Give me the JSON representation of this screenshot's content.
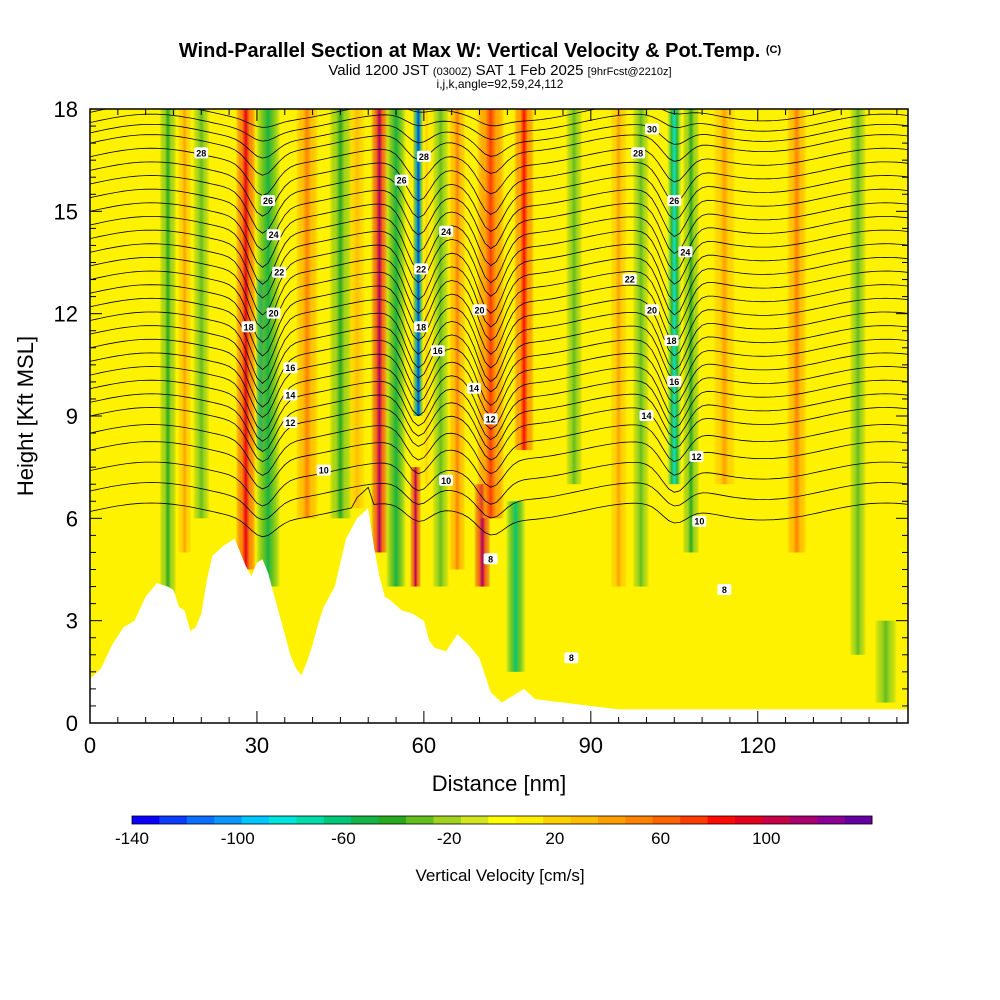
{
  "chart_data": {
    "type": "heatmap",
    "title": "Wind-Parallel Section at Max W: Vertical Velocity & Pot.Temp.",
    "title_mark": "(C)",
    "subtitle_parts": [
      "Valid 1200 JST",
      "(0300Z)",
      "SAT 1 Feb 2025",
      "[9hrFcst@2210z]"
    ],
    "subtitle2": "i,j,k,angle=92,59,24,112",
    "xlabel": "Distance [nm]",
    "ylabel": "Height [Kft MSL]",
    "xlim": [
      0,
      147
    ],
    "ylim": [
      0,
      18
    ],
    "x_ticks": [
      "0",
      "30",
      "60",
      "90",
      "120"
    ],
    "x_tick_values": [
      0,
      30,
      60,
      90,
      120
    ],
    "y_ticks": [
      "0",
      "3",
      "6",
      "9",
      "12",
      "15",
      "18"
    ],
    "y_tick_values": [
      0,
      3,
      6,
      9,
      12,
      15,
      18
    ],
    "colorbar": {
      "label": "Vertical Velocity [cm/s]",
      "min": -140,
      "max": 140,
      "tick_labels": [
        "-140",
        "-100",
        "-60",
        "-20",
        "20",
        "60",
        "100"
      ],
      "tick_values": [
        -140,
        -100,
        -60,
        -20,
        20,
        60,
        100
      ],
      "colors": [
        "#0a00ff",
        "#0a3cff",
        "#0a6eff",
        "#0a96ff",
        "#00c8ff",
        "#00e6dc",
        "#00dcaa",
        "#00c878",
        "#14b446",
        "#28aa1e",
        "#64be1e",
        "#a0d21e",
        "#d2e61e",
        "#ffff00",
        "#fff000",
        "#ffd200",
        "#ffbe00",
        "#ffa000",
        "#ff8200",
        "#ff6400",
        "#ff3c00",
        "#ff0a00",
        "#e6001e",
        "#c80046",
        "#aa006e",
        "#8c0096",
        "#6400a0"
      ]
    },
    "velocity_bands": [
      {
        "x": 14,
        "w": 1.5,
        "ymin": 3.8,
        "ymax": 18,
        "value": -40
      },
      {
        "x": 17,
        "w": 1.2,
        "ymin": 5,
        "ymax": 18,
        "value": 40
      },
      {
        "x": 20,
        "w": 1.5,
        "ymin": 6,
        "ymax": 18,
        "value": -30
      },
      {
        "x": 28,
        "w": 1.8,
        "ymin": 4.5,
        "ymax": 18,
        "value": 95
      },
      {
        "x": 31,
        "w": 1.2,
        "ymin": 8,
        "ymax": 13,
        "value": -110
      },
      {
        "x": 32,
        "w": 2.2,
        "ymin": 4,
        "ymax": 18,
        "value": -50
      },
      {
        "x": 39,
        "w": 2.0,
        "ymin": 6,
        "ymax": 18,
        "value": 50
      },
      {
        "x": 45,
        "w": 2.0,
        "ymin": 6,
        "ymax": 18,
        "value": -40
      },
      {
        "x": 48,
        "w": 1.5,
        "ymin": 6.3,
        "ymax": 18,
        "value": 30
      },
      {
        "x": 52,
        "w": 1.5,
        "ymin": 5,
        "ymax": 18,
        "value": 110
      },
      {
        "x": 55,
        "w": 1.8,
        "ymin": 4,
        "ymax": 18,
        "value": -50
      },
      {
        "x": 58.5,
        "w": 1.0,
        "ymin": 4,
        "ymax": 7.5,
        "value": 110
      },
      {
        "x": 59,
        "w": 1.0,
        "ymin": 9,
        "ymax": 18,
        "value": -120
      },
      {
        "x": 60.5,
        "w": 1.2,
        "ymin": 7,
        "ymax": 18,
        "value": 20
      },
      {
        "x": 63,
        "w": 1.5,
        "ymin": 4,
        "ymax": 18,
        "value": -30
      },
      {
        "x": 66,
        "w": 1.5,
        "ymin": 4.5,
        "ymax": 18,
        "value": 50
      },
      {
        "x": 70.5,
        "w": 1.5,
        "ymin": 4,
        "ymax": 7,
        "value": 110
      },
      {
        "x": 72,
        "w": 2.5,
        "ymin": 6,
        "ymax": 18,
        "value": 70
      },
      {
        "x": 76.5,
        "w": 1.8,
        "ymin": 1.5,
        "ymax": 6.5,
        "value": -60
      },
      {
        "x": 78,
        "w": 1.8,
        "ymin": 8,
        "ymax": 18,
        "value": 80
      },
      {
        "x": 87,
        "w": 1.5,
        "ymin": 7,
        "ymax": 18,
        "value": -30
      },
      {
        "x": 95,
        "w": 1.5,
        "ymin": 4,
        "ymax": 18,
        "value": 40
      },
      {
        "x": 99,
        "w": 1.5,
        "ymin": 4,
        "ymax": 18,
        "value": -30
      },
      {
        "x": 105,
        "w": 1.3,
        "ymin": 7,
        "ymax": 18,
        "value": -80
      },
      {
        "x": 108,
        "w": 1.5,
        "ymin": 5,
        "ymax": 18,
        "value": -40
      },
      {
        "x": 114,
        "w": 2.0,
        "ymin": 7,
        "ymax": 18,
        "value": 40
      },
      {
        "x": 127,
        "w": 1.8,
        "ymin": 5,
        "ymax": 18,
        "value": 50
      },
      {
        "x": 138,
        "w": 1.5,
        "ymin": 2,
        "ymax": 18,
        "value": -30
      },
      {
        "x": 143,
        "w": 2.0,
        "ymin": 0.6,
        "ymax": 3,
        "value": -30
      }
    ],
    "terrain": [
      [
        0,
        1.3
      ],
      [
        2,
        1.6
      ],
      [
        4,
        2.3
      ],
      [
        6,
        2.8
      ],
      [
        8,
        3.0
      ],
      [
        10,
        3.7
      ],
      [
        12,
        4.1
      ],
      [
        14,
        4.0
      ],
      [
        15,
        3.9
      ],
      [
        16,
        3.4
      ],
      [
        17,
        3.3
      ],
      [
        18,
        2.7
      ],
      [
        19,
        2.8
      ],
      [
        20,
        3.2
      ],
      [
        21,
        4.2
      ],
      [
        22,
        4.9
      ],
      [
        24,
        5.2
      ],
      [
        26,
        5.4
      ],
      [
        27,
        5.0
      ],
      [
        28,
        4.6
      ],
      [
        29,
        4.3
      ],
      [
        30,
        4.7
      ],
      [
        31,
        4.8
      ],
      [
        32,
        4.4
      ],
      [
        33,
        3.8
      ],
      [
        34,
        3.2
      ],
      [
        35,
        2.6
      ],
      [
        36,
        2.0
      ],
      [
        37,
        1.6
      ],
      [
        38,
        1.4
      ],
      [
        39,
        1.8
      ],
      [
        40,
        2.3
      ],
      [
        41,
        2.9
      ],
      [
        42,
        3.4
      ],
      [
        44,
        4.0
      ],
      [
        46,
        5.4
      ],
      [
        48,
        6.0
      ],
      [
        50,
        6.3
      ],
      [
        51,
        5.2
      ],
      [
        52,
        4.3
      ],
      [
        53,
        3.7
      ],
      [
        54,
        3.6
      ],
      [
        56,
        3.3
      ],
      [
        58,
        3.2
      ],
      [
        60,
        3.0
      ],
      [
        61,
        2.4
      ],
      [
        62,
        2.2
      ],
      [
        64,
        2.1
      ],
      [
        66,
        2.6
      ],
      [
        68,
        2.3
      ],
      [
        70,
        1.9
      ],
      [
        72,
        0.9
      ],
      [
        74,
        0.6
      ],
      [
        76,
        0.8
      ],
      [
        78,
        1.0
      ],
      [
        80,
        0.7
      ],
      [
        95,
        0.4
      ],
      [
        100,
        0.4
      ],
      [
        147,
        0.4
      ]
    ],
    "isentropes": [
      {
        "y_left": 17.9,
        "dip": 0.2
      },
      {
        "y_left": 17.6,
        "dip": 0.3
      },
      {
        "y_left": 17.3,
        "dip": 0.5
      },
      {
        "y_left": 17.0,
        "dip": 0.7
      },
      {
        "y_left": 16.6,
        "dip": 0.9
      },
      {
        "y_left": 16.2,
        "dip": 1.1
      },
      {
        "y_left": 15.8,
        "dip": 1.2
      },
      {
        "y_left": 15.4,
        "dip": 1.3
      },
      {
        "y_left": 15.0,
        "dip": 1.4
      },
      {
        "y_left": 14.6,
        "dip": 1.5
      },
      {
        "y_left": 14.2,
        "dip": 1.5
      },
      {
        "y_left": 13.8,
        "dip": 1.6
      },
      {
        "y_left": 13.4,
        "dip": 1.6
      },
      {
        "y_left": 13.0,
        "dip": 1.6
      },
      {
        "y_left": 12.6,
        "dip": 1.6
      },
      {
        "y_left": 12.2,
        "dip": 1.6
      },
      {
        "y_left": 11.8,
        "dip": 1.6
      },
      {
        "y_left": 11.4,
        "dip": 1.5
      },
      {
        "y_left": 11.0,
        "dip": 1.5
      },
      {
        "y_left": 10.6,
        "dip": 1.4
      },
      {
        "y_left": 10.2,
        "dip": 1.4
      },
      {
        "y_left": 9.8,
        "dip": 1.3
      },
      {
        "y_left": 9.4,
        "dip": 1.2
      },
      {
        "y_left": 9.0,
        "dip": 1.1
      },
      {
        "y_left": 8.5,
        "dip": 1.0
      },
      {
        "y_left": 8.0,
        "dip": 0.9
      },
      {
        "y_left": 7.4,
        "dip": 0.8
      },
      {
        "y_left": 6.8,
        "dip": 0.6
      },
      {
        "y_left": 6.2,
        "dip": 0.5
      }
    ],
    "contour_labels": [
      {
        "text": "28",
        "x": 20,
        "y": 16.7
      },
      {
        "text": "26",
        "x": 32,
        "y": 15.3
      },
      {
        "text": "24",
        "x": 33,
        "y": 14.3
      },
      {
        "text": "22",
        "x": 34,
        "y": 13.2
      },
      {
        "text": "20",
        "x": 33,
        "y": 12.0
      },
      {
        "text": "18",
        "x": 28.5,
        "y": 11.6
      },
      {
        "text": "16",
        "x": 36,
        "y": 10.4
      },
      {
        "text": "14",
        "x": 36,
        "y": 9.6
      },
      {
        "text": "12",
        "x": 36,
        "y": 8.8
      },
      {
        "text": "10",
        "x": 42,
        "y": 7.4
      },
      {
        "text": "28",
        "x": 60,
        "y": 16.6
      },
      {
        "text": "26",
        "x": 56,
        "y": 15.9
      },
      {
        "text": "24",
        "x": 64,
        "y": 14.4
      },
      {
        "text": "22",
        "x": 59.5,
        "y": 13.3
      },
      {
        "text": "20",
        "x": 70,
        "y": 12.1
      },
      {
        "text": "18",
        "x": 59.5,
        "y": 11.6
      },
      {
        "text": "16",
        "x": 62.5,
        "y": 10.9
      },
      {
        "text": "14",
        "x": 69,
        "y": 9.8
      },
      {
        "text": "12",
        "x": 72,
        "y": 8.9
      },
      {
        "text": "10",
        "x": 64,
        "y": 7.1
      },
      {
        "text": "8",
        "x": 72,
        "y": 4.8
      },
      {
        "text": "8",
        "x": 86.5,
        "y": 1.9
      },
      {
        "text": "30",
        "x": 101,
        "y": 17.4
      },
      {
        "text": "28",
        "x": 98.5,
        "y": 16.7
      },
      {
        "text": "26",
        "x": 105,
        "y": 15.3
      },
      {
        "text": "24",
        "x": 107,
        "y": 13.8
      },
      {
        "text": "22",
        "x": 97,
        "y": 13.0
      },
      {
        "text": "20",
        "x": 101,
        "y": 12.1
      },
      {
        "text": "18",
        "x": 104.5,
        "y": 11.2
      },
      {
        "text": "16",
        "x": 105,
        "y": 10.0
      },
      {
        "text": "14",
        "x": 100,
        "y": 9.0
      },
      {
        "text": "12",
        "x": 109,
        "y": 7.8
      },
      {
        "text": "10",
        "x": 109.5,
        "y": 5.9
      },
      {
        "text": "8",
        "x": 114,
        "y": 3.9
      }
    ]
  }
}
